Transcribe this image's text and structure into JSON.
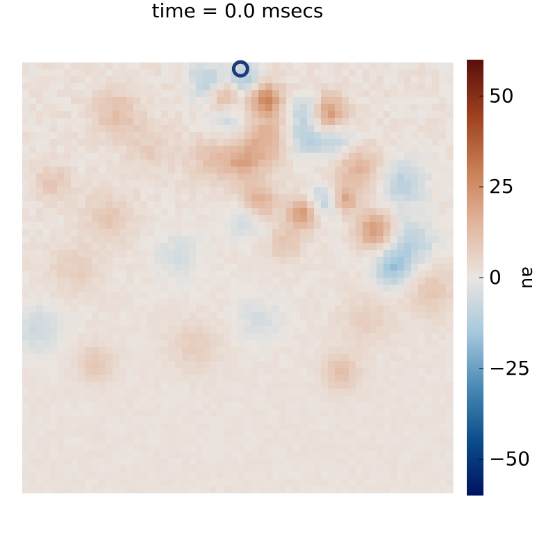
{
  "chart_data": {
    "type": "heatmap",
    "title": "time = 0.0 msecs",
    "colorbar": {
      "label": "au",
      "range": [
        -60,
        60
      ],
      "ticks": [
        50,
        25,
        0,
        -25,
        -50
      ],
      "tick_labels": [
        "50",
        "25",
        "0",
        "−25",
        "−50"
      ],
      "colormap": "vik",
      "stops": [
        {
          "v": -60,
          "color": "#001260"
        },
        {
          "v": -45,
          "color": "#0a4d8a"
        },
        {
          "v": -30,
          "color": "#4b8ab5"
        },
        {
          "v": -15,
          "color": "#a7c9dd"
        },
        {
          "v": 0,
          "color": "#ebe5e0"
        },
        {
          "v": 15,
          "color": "#e1b59c"
        },
        {
          "v": 30,
          "color": "#c87d52"
        },
        {
          "v": 45,
          "color": "#9c3f1d"
        },
        {
          "v": 60,
          "color": "#5a0f0c"
        }
      ]
    },
    "grid": false,
    "marker": {
      "shape": "circle",
      "color": "#1f3a7a",
      "x": 0.507,
      "y": 0.985
    },
    "field_hotspots": [
      {
        "x": 0.43,
        "y": 0.96,
        "v": -12,
        "r": 0.03
      },
      {
        "x": 0.52,
        "y": 0.96,
        "v": -18,
        "r": 0.025
      },
      {
        "x": 0.55,
        "y": 0.93,
        "v": 10,
        "r": 0.03
      },
      {
        "x": 0.47,
        "y": 0.92,
        "v": 14,
        "r": 0.025
      },
      {
        "x": 0.57,
        "y": 0.91,
        "v": 18,
        "r": 0.025
      },
      {
        "x": 0.66,
        "y": 0.89,
        "v": -12,
        "r": 0.025
      },
      {
        "x": 0.71,
        "y": 0.88,
        "v": 22,
        "r": 0.03
      },
      {
        "x": 0.48,
        "y": 0.86,
        "v": -8,
        "r": 0.04
      },
      {
        "x": 0.56,
        "y": 0.82,
        "v": 16,
        "r": 0.04
      },
      {
        "x": 0.66,
        "y": 0.83,
        "v": -14,
        "r": 0.03
      },
      {
        "x": 0.73,
        "y": 0.82,
        "v": -12,
        "r": 0.03
      },
      {
        "x": 0.51,
        "y": 0.77,
        "v": 14,
        "r": 0.03
      },
      {
        "x": 0.44,
        "y": 0.78,
        "v": 10,
        "r": 0.04
      },
      {
        "x": 0.78,
        "y": 0.75,
        "v": 14,
        "r": 0.04
      },
      {
        "x": 0.88,
        "y": 0.72,
        "v": -12,
        "r": 0.04
      },
      {
        "x": 0.55,
        "y": 0.68,
        "v": 16,
        "r": 0.03
      },
      {
        "x": 0.65,
        "y": 0.65,
        "v": 20,
        "r": 0.025
      },
      {
        "x": 0.7,
        "y": 0.68,
        "v": -12,
        "r": 0.025
      },
      {
        "x": 0.75,
        "y": 0.68,
        "v": 16,
        "r": 0.02
      },
      {
        "x": 0.82,
        "y": 0.61,
        "v": 22,
        "r": 0.03
      },
      {
        "x": 0.9,
        "y": 0.58,
        "v": -12,
        "r": 0.04
      },
      {
        "x": 0.86,
        "y": 0.52,
        "v": -16,
        "r": 0.03
      },
      {
        "x": 0.52,
        "y": 0.63,
        "v": -8,
        "r": 0.03
      },
      {
        "x": 0.61,
        "y": 0.58,
        "v": 8,
        "r": 0.03
      },
      {
        "x": 0.22,
        "y": 0.88,
        "v": 10,
        "r": 0.04
      },
      {
        "x": 0.3,
        "y": 0.8,
        "v": 6,
        "r": 0.04
      },
      {
        "x": 0.07,
        "y": 0.72,
        "v": 8,
        "r": 0.03
      },
      {
        "x": 0.2,
        "y": 0.64,
        "v": 8,
        "r": 0.04
      },
      {
        "x": 0.36,
        "y": 0.55,
        "v": -6,
        "r": 0.04
      },
      {
        "x": 0.12,
        "y": 0.52,
        "v": 6,
        "r": 0.04
      },
      {
        "x": 0.04,
        "y": 0.38,
        "v": -8,
        "r": 0.04
      },
      {
        "x": 0.17,
        "y": 0.3,
        "v": 8,
        "r": 0.03
      },
      {
        "x": 0.4,
        "y": 0.34,
        "v": 6,
        "r": 0.04
      },
      {
        "x": 0.55,
        "y": 0.4,
        "v": -6,
        "r": 0.04
      },
      {
        "x": 0.74,
        "y": 0.28,
        "v": 10,
        "r": 0.03
      },
      {
        "x": 0.8,
        "y": 0.4,
        "v": 6,
        "r": 0.04
      },
      {
        "x": 0.95,
        "y": 0.47,
        "v": 8,
        "r": 0.04
      }
    ]
  }
}
